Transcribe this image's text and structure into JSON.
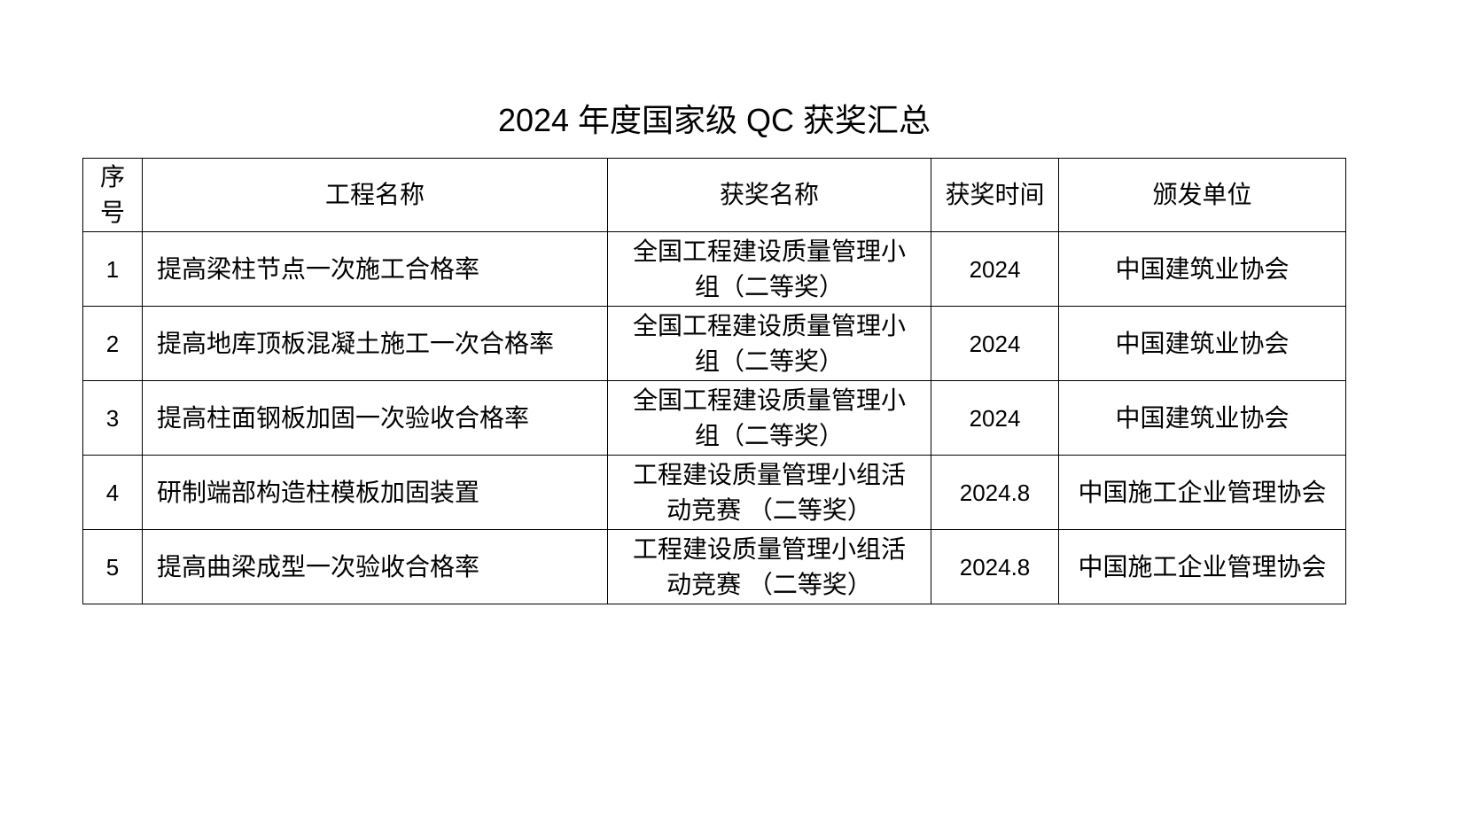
{
  "title": "2024 年度国家级 QC 获奖汇总",
  "table": {
    "headers": [
      "序号",
      "工程名称",
      "获奖名称",
      "获奖时间",
      "颁发单位"
    ],
    "rows": [
      [
        "1",
        "提高梁柱节点一次施工合格率",
        "全国工程建设质量管理小组（二等奖）",
        "2024",
        "中国建筑业协会"
      ],
      [
        "2",
        "提高地库顶板混凝土施工一次合格率",
        "全国工程建设质量管理小组（二等奖）",
        "2024",
        "中国建筑业协会"
      ],
      [
        "3",
        "提高柱面钢板加固一次验收合格率",
        "全国工程建设质量管理小组（二等奖）",
        "2024",
        "中国建筑业协会"
      ],
      [
        "4",
        "研制端部构造柱模板加固装置",
        "工程建设质量管理小组活动竞赛 （二等奖）",
        "2024.8",
        "中国施工企业管理协会"
      ],
      [
        "5",
        "提高曲梁成型一次验收合格率",
        "工程建设质量管理小组活动竞赛 （二等奖）",
        "2024.8",
        "中国施工企业管理协会"
      ]
    ]
  }
}
